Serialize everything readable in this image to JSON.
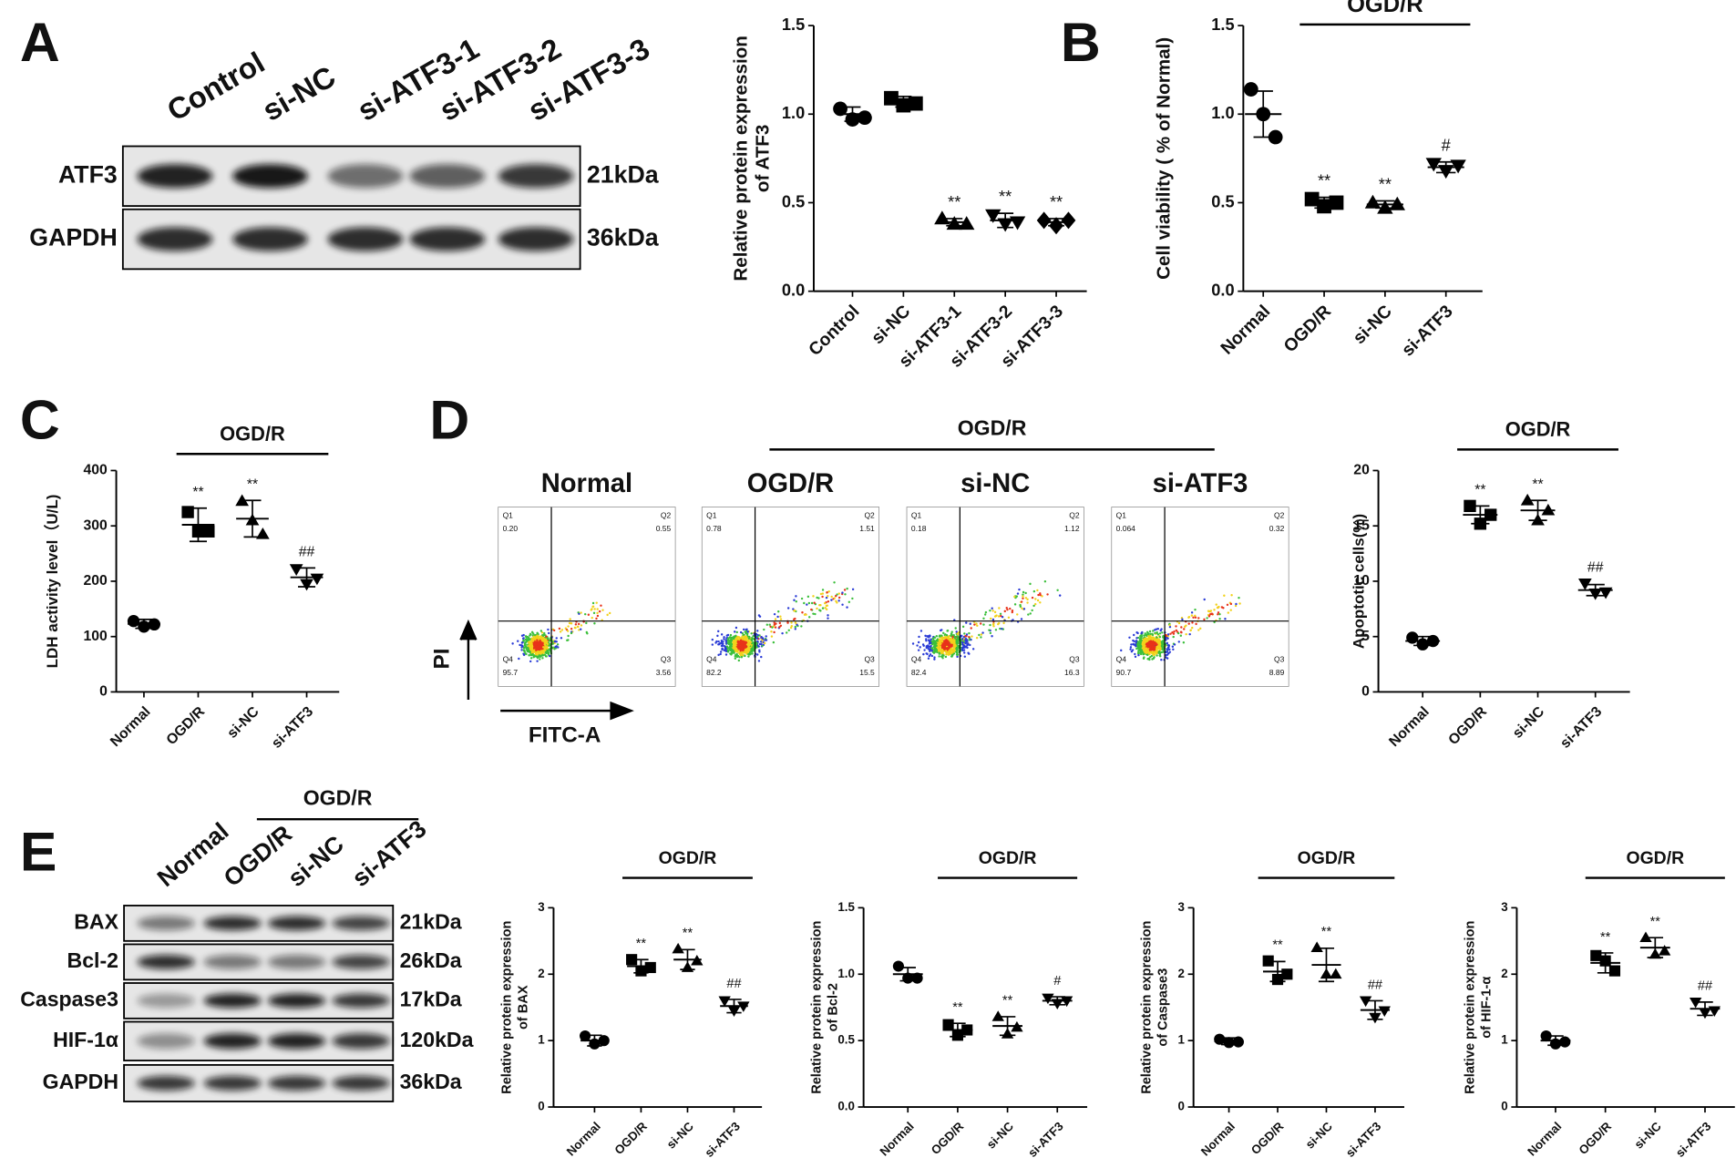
{
  "panel_labels": [
    "A",
    "B",
    "C",
    "D",
    "E"
  ],
  "blot_a": {
    "lanes": [
      "Control",
      "si-NC",
      "si-ATF3-1",
      "si-ATF3-2",
      "si-ATF3-3"
    ],
    "rows": [
      {
        "protein": "ATF3",
        "size": "21kDa"
      },
      {
        "protein": "GAPDH",
        "size": "36kDa"
      }
    ]
  },
  "blot_e": {
    "bracket": "OGD/R",
    "lanes": [
      "Normal",
      "OGD/R",
      "si-NC",
      "si-ATF3"
    ],
    "rows": [
      {
        "protein": "BAX",
        "size": "21kDa"
      },
      {
        "protein": "Bcl-2",
        "size": "26kDa"
      },
      {
        "protein": "Caspase3",
        "size": "17kDa"
      },
      {
        "protein": "HIF-1α",
        "size": "120kDa"
      },
      {
        "protein": "GAPDH",
        "size": "36kDa"
      }
    ]
  },
  "flow": {
    "bracket": "OGD/R",
    "x_label": "FITC-A",
    "y_label": "PI",
    "plots": [
      {
        "title": "Normal",
        "quadrants": [
          {
            "name": "Q1",
            "value": "0.20"
          },
          {
            "name": "Q2",
            "value": "0.55"
          },
          {
            "name": "Q3",
            "value": "3.56"
          },
          {
            "name": "Q4",
            "value": "95.7"
          }
        ]
      },
      {
        "title": "OGD/R",
        "quadrants": [
          {
            "name": "Q1",
            "value": "0.78"
          },
          {
            "name": "Q2",
            "value": "1.51"
          },
          {
            "name": "Q3",
            "value": "15.5"
          },
          {
            "name": "Q4",
            "value": "82.2"
          }
        ]
      },
      {
        "title": "si-NC",
        "quadrants": [
          {
            "name": "Q1",
            "value": "0.18"
          },
          {
            "name": "Q2",
            "value": "1.12"
          },
          {
            "name": "Q3",
            "value": "16.3"
          },
          {
            "name": "Q4",
            "value": "82.4"
          }
        ]
      },
      {
        "title": "si-ATF3",
        "quadrants": [
          {
            "name": "Q1",
            "value": "0.064"
          },
          {
            "name": "Q2",
            "value": "0.32"
          },
          {
            "name": "Q3",
            "value": "8.89"
          },
          {
            "name": "Q4",
            "value": "90.7"
          }
        ]
      }
    ]
  },
  "chart_data": [
    {
      "type": "dot",
      "ylabel": [
        "Relative protein expression",
        "of ATF3"
      ],
      "categories": [
        "Control",
        "si-NC",
        "si-ATF3-1",
        "si-ATF3-2",
        "si-ATF3-3"
      ],
      "markers": [
        "circle",
        "square",
        "triangle-up",
        "triangle-down",
        "diamond"
      ],
      "points": [
        [
          1.03,
          0.97,
          0.98
        ],
        [
          1.09,
          1.05,
          1.06
        ],
        [
          0.41,
          0.38,
          0.38
        ],
        [
          0.43,
          0.38,
          0.39
        ],
        [
          0.4,
          0.37,
          0.4
        ]
      ],
      "means": [
        1.0,
        1.07,
        0.39,
        0.4,
        0.39
      ],
      "sd": [
        0.04,
        0.03,
        0.02,
        0.04,
        0.02
      ],
      "annotations": [
        null,
        null,
        "**",
        "**",
        "**"
      ],
      "ylim": [
        0,
        1.5
      ],
      "yticks": [
        {
          "value": 0,
          "label": "0.0"
        },
        0.5,
        {
          "value": 1,
          "label": "1.0"
        },
        1.5
      ]
    },
    {
      "type": "dot",
      "ylabel": [
        "Cell viability ( % of Normal)"
      ],
      "categories": [
        "Normal",
        "OGD/R",
        "si-NC",
        "si-ATF3"
      ],
      "markers": [
        "circle",
        "square",
        "triangle-up",
        "triangle-down"
      ],
      "points": [
        [
          1.14,
          1.0,
          0.87
        ],
        [
          0.52,
          0.48,
          0.5
        ],
        [
          0.5,
          0.47,
          0.49
        ],
        [
          0.72,
          0.68,
          0.71
        ]
      ],
      "means": [
        1.0,
        0.5,
        0.49,
        0.7
      ],
      "sd": [
        0.13,
        0.03,
        0.02,
        0.03
      ],
      "annotations": [
        null,
        "**",
        "**",
        "#"
      ],
      "bracket": {
        "label": "OGD/R",
        "from": 1,
        "to": 3
      },
      "ylim": [
        0,
        1.5
      ],
      "yticks": [
        {
          "value": 0,
          "label": "0.0"
        },
        0.5,
        {
          "value": 1,
          "label": "1.0"
        },
        1.5
      ]
    },
    {
      "type": "dot",
      "ylabel": [
        "LDH activity level（U/L)"
      ],
      "categories": [
        "Normal",
        "OGD/R",
        "si-NC",
        "si-ATF3"
      ],
      "markers": [
        "circle",
        "square",
        "triangle-up",
        "triangle-down"
      ],
      "points": [
        [
          128,
          118,
          122
        ],
        [
          325,
          290,
          290
        ],
        [
          345,
          310,
          285
        ],
        [
          222,
          195,
          205
        ]
      ],
      "means": [
        123,
        302,
        313,
        207
      ],
      "sd": [
        8,
        30,
        33,
        17
      ],
      "annotations": [
        null,
        "**",
        "**",
        "##"
      ],
      "bracket": {
        "label": "OGD/R",
        "from": 1,
        "to": 3
      },
      "ylim": [
        0,
        400
      ],
      "yticks": [
        0,
        100,
        200,
        300,
        400
      ]
    },
    {
      "type": "dot",
      "ylabel": [
        "Apoptotic cells(%)"
      ],
      "categories": [
        "Normal",
        "OGD/R",
        "si-NC",
        "si-ATF3"
      ],
      "markers": [
        "circle",
        "square",
        "triangle-up",
        "triangle-down"
      ],
      "points": [
        [
          4.9,
          4.3,
          4.6
        ],
        [
          16.8,
          15.2,
          16.0
        ],
        [
          17.3,
          15.5,
          16.4
        ],
        [
          9.8,
          8.9,
          9.0
        ]
      ],
      "means": [
        4.6,
        16.0,
        16.4,
        9.2
      ],
      "sd": [
        0.4,
        0.8,
        0.9,
        0.5
      ],
      "annotations": [
        null,
        "**",
        "**",
        "##"
      ],
      "bracket": {
        "label": "OGD/R",
        "from": 1,
        "to": 3
      },
      "ylim": [
        0,
        20
      ],
      "yticks": [
        0,
        5,
        10,
        15,
        20
      ]
    },
    {
      "type": "dot",
      "ylabel": [
        "Relative protein expression",
        "of BAX"
      ],
      "categories": [
        "Normal",
        "OGD/R",
        "si-NC",
        "si-ATF3"
      ],
      "markers": [
        "circle",
        "square",
        "triangle-up",
        "triangle-down"
      ],
      "points": [
        [
          1.07,
          0.95,
          1.0
        ],
        [
          2.22,
          2.05,
          2.1
        ],
        [
          2.38,
          2.1,
          2.2
        ],
        [
          1.6,
          1.45,
          1.52
        ]
      ],
      "means": [
        1.0,
        2.12,
        2.22,
        1.52
      ],
      "sd": [
        0.08,
        0.1,
        0.15,
        0.1
      ],
      "annotations": [
        null,
        "**",
        "**",
        "##"
      ],
      "bracket": {
        "label": "OGD/R",
        "from": 1,
        "to": 3
      },
      "ylim": [
        0,
        3
      ],
      "yticks": [
        0,
        1,
        2,
        3
      ]
    },
    {
      "type": "dot",
      "ylabel": [
        "Relative protein expression",
        "of Bcl-2"
      ],
      "categories": [
        "Normal",
        "OGD/R",
        "si-NC",
        "si-ATF3"
      ],
      "markers": [
        "circle",
        "square",
        "triangle-up",
        "triangle-down"
      ],
      "points": [
        [
          1.06,
          0.97,
          0.97
        ],
        [
          0.62,
          0.54,
          0.58
        ],
        [
          0.68,
          0.55,
          0.6
        ],
        [
          0.82,
          0.78,
          0.8
        ]
      ],
      "means": [
        1.0,
        0.58,
        0.61,
        0.8
      ],
      "sd": [
        0.05,
        0.05,
        0.07,
        0.03
      ],
      "annotations": [
        null,
        "**",
        "**",
        "#"
      ],
      "bracket": {
        "label": "OGD/R",
        "from": 1,
        "to": 3
      },
      "ylim": [
        0,
        1.5
      ],
      "yticks": [
        {
          "value": 0,
          "label": "0.0"
        },
        0.5,
        {
          "value": 1,
          "label": "1.0"
        },
        1.5
      ]
    },
    {
      "type": "dot",
      "ylabel": [
        "Relative protein expression",
        "of Caspase3"
      ],
      "categories": [
        "Normal",
        "OGD/R",
        "si-NC",
        "si-ATF3"
      ],
      "markers": [
        "circle",
        "square",
        "triangle-up",
        "triangle-down"
      ],
      "points": [
        [
          1.02,
          0.97,
          0.98
        ],
        [
          2.2,
          1.92,
          2.0
        ],
        [
          2.4,
          2.0,
          2.0
        ],
        [
          1.6,
          1.35,
          1.45
        ]
      ],
      "means": [
        0.99,
        2.04,
        2.14,
        1.46
      ],
      "sd": [
        0.05,
        0.15,
        0.25,
        0.14
      ],
      "annotations": [
        null,
        "**",
        "**",
        "##"
      ],
      "bracket": {
        "label": "OGD/R",
        "from": 1,
        "to": 3
      },
      "ylim": [
        0,
        3
      ],
      "yticks": [
        0,
        1,
        2,
        3
      ]
    },
    {
      "type": "dot",
      "ylabel": [
        "Relative protein expression",
        "of HIF-1-α"
      ],
      "categories": [
        "Normal",
        "OGD/R",
        "si-NC",
        "si-ATF3"
      ],
      "markers": [
        "circle",
        "square",
        "triangle-up",
        "triangle-down"
      ],
      "points": [
        [
          1.07,
          0.95,
          0.98
        ],
        [
          2.28,
          2.2,
          2.05
        ],
        [
          2.55,
          2.3,
          2.35
        ],
        [
          1.58,
          1.42,
          1.45
        ]
      ],
      "means": [
        1.0,
        2.17,
        2.4,
        1.48
      ],
      "sd": [
        0.07,
        0.15,
        0.15,
        0.1
      ],
      "annotations": [
        null,
        "**",
        "**",
        "##"
      ],
      "bracket": {
        "label": "OGD/R",
        "from": 1,
        "to": 3
      },
      "ylim": [
        0,
        3
      ],
      "yticks": [
        0,
        1,
        2,
        3
      ]
    }
  ]
}
